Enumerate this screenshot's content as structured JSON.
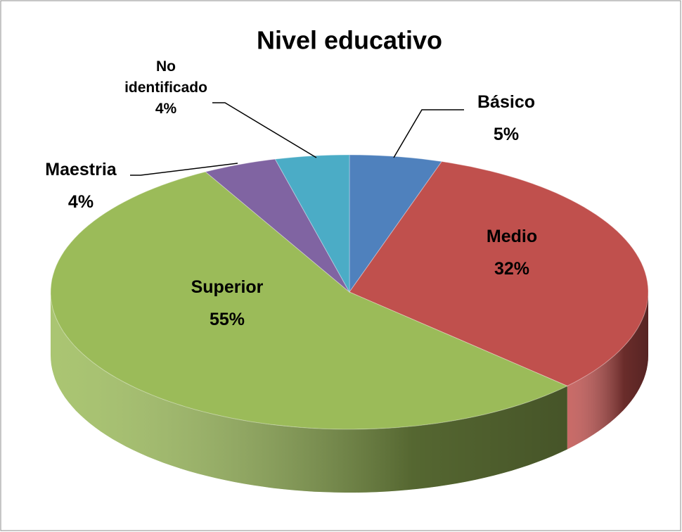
{
  "chart_data": {
    "type": "pie3d",
    "title": "Nivel educativo",
    "categories": [
      "Básico",
      "Medio",
      "Superior",
      "Maestria",
      "No identificado"
    ],
    "values": [
      5,
      32,
      55,
      4,
      4
    ],
    "value_labels": [
      "5%",
      "32%",
      "55%",
      "4%",
      "4%"
    ],
    "colors": [
      "#4f81bd",
      "#c0504d",
      "#9bbb59",
      "#8064a2",
      "#4bacc6"
    ]
  }
}
